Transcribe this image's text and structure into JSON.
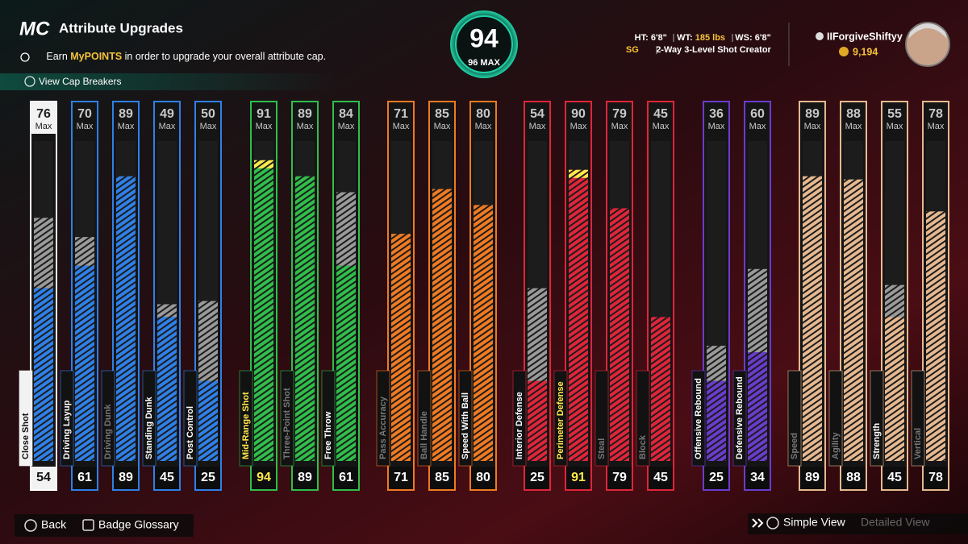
{
  "header": {
    "logo": "MC",
    "title": "Attribute Upgrades",
    "info": [
      "Earn ",
      "MyPOINTS",
      " in order to upgrade your overall attribute cap."
    ],
    "cap_breakers": "View Cap Breakers"
  },
  "overall": {
    "rating": 94,
    "max": "96 MAX"
  },
  "player": {
    "ht_label": "HT:",
    "ht": "6'8\"",
    "wt_label": "WT:",
    "wt": "185 lbs",
    "ws_label": "WS:",
    "ws": "6'8\"",
    "position": "SG",
    "archetype": "2-Way 3-Level Shot Creator",
    "username": "IIForgiveShiftyy",
    "vc": "9,194"
  },
  "max_label": "Max",
  "groups": [
    {
      "color": "#2f80e8",
      "attributes": [
        {
          "name": "Close Shot",
          "max": 76,
          "value": 54,
          "selected": true
        },
        {
          "name": "Driving Layup",
          "max": 70,
          "value": 61
        },
        {
          "name": "Driving Dunk",
          "max": 89,
          "value": 89,
          "dim": true
        },
        {
          "name": "Standing Dunk",
          "max": 49,
          "value": 45
        },
        {
          "name": "Post Control",
          "max": 50,
          "value": 25
        }
      ]
    },
    {
      "color": "#2fbf4a",
      "attributes": [
        {
          "name": "Mid-Range Shot",
          "max": 91,
          "value": 94,
          "highlight": true
        },
        {
          "name": "Three-Point Shot",
          "max": 89,
          "value": 89,
          "dim": true
        },
        {
          "name": "Free Throw",
          "max": 84,
          "value": 61
        }
      ]
    },
    {
      "color": "#f07a22",
      "attributes": [
        {
          "name": "Pass Accuracy",
          "max": 71,
          "value": 71,
          "dim": true
        },
        {
          "name": "Ball Handle",
          "max": 85,
          "value": 85,
          "dim": true
        },
        {
          "name": "Speed With Ball",
          "max": 80,
          "value": 80
        }
      ]
    },
    {
      "color": "#e0253a",
      "attributes": [
        {
          "name": "Interior Defense",
          "max": 54,
          "value": 25
        },
        {
          "name": "Perimeter Defense",
          "max": 90,
          "value": 91,
          "highlight": true
        },
        {
          "name": "Steal",
          "max": 79,
          "value": 79,
          "dim": true
        },
        {
          "name": "Block",
          "max": 45,
          "value": 45,
          "dim": true
        }
      ]
    },
    {
      "color": "#6a3ccc",
      "attributes": [
        {
          "name": "Offensive Rebound",
          "max": 36,
          "value": 25
        },
        {
          "name": "Defensive Rebound",
          "max": 60,
          "value": 34
        }
      ]
    },
    {
      "color": "#e6b890",
      "attributes": [
        {
          "name": "Speed",
          "max": 89,
          "value": 89,
          "dim": true
        },
        {
          "name": "Agility",
          "max": 88,
          "value": 88,
          "dim": true
        },
        {
          "name": "Strength",
          "max": 55,
          "value": 45
        },
        {
          "name": "Vertical",
          "max": 78,
          "value": 78,
          "dim": true
        }
      ]
    }
  ],
  "footer": {
    "back": "Back",
    "badge_glossary": "Badge Glossary",
    "simple_view": "Simple View",
    "detailed_view": "Detailed View"
  }
}
